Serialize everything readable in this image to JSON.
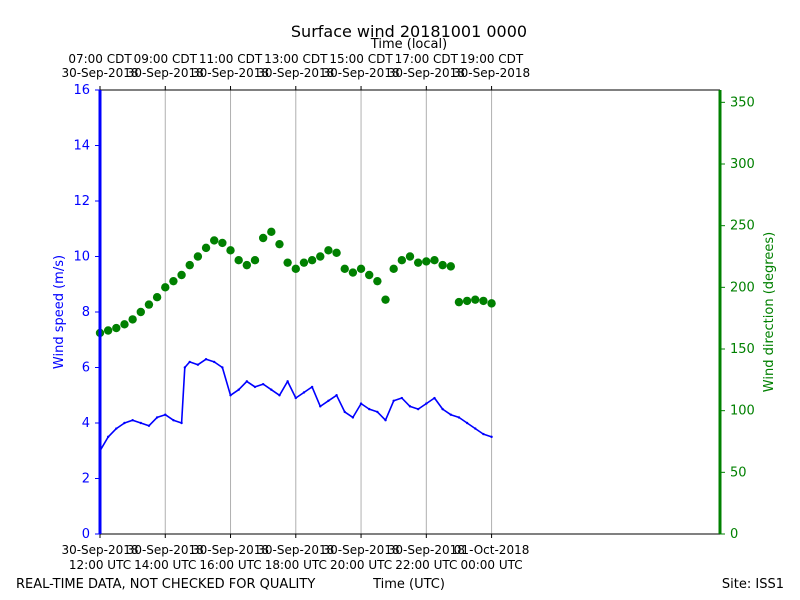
{
  "chart_data": {
    "type": "line",
    "title": "Surface wind 20181001 0000",
    "top_axis_label": "Time (local)",
    "bottom_axis_label": "Time (UTC)",
    "left_axis_label": "Wind speed (m/s)",
    "right_axis_label": "Wind direction (degrees)",
    "footer_left": "REAL-TIME DATA, NOT CHECKED FOR QUALITY",
    "footer_right": "Site: ISS1",
    "x_range_hours": [
      12,
      31
    ],
    "x_ticks": [
      12,
      14,
      16,
      18,
      20,
      22,
      24
    ],
    "bottom_tick_labels": [
      [
        "30-Sep-2018",
        "12:00 UTC"
      ],
      [
        "30-Sep-2018",
        "14:00 UTC"
      ],
      [
        "30-Sep-2018",
        "16:00 UTC"
      ],
      [
        "30-Sep-2018",
        "18:00 UTC"
      ],
      [
        "30-Sep-2018",
        "20:00 UTC"
      ],
      [
        "30-Sep-2018",
        "22:00 UTC"
      ],
      [
        "01-Oct-2018",
        "00:00 UTC"
      ]
    ],
    "top_tick_labels": [
      [
        "07:00 CDT",
        "30-Sep-2018"
      ],
      [
        "09:00 CDT",
        "30-Sep-2018"
      ],
      [
        "11:00 CDT",
        "30-Sep-2018"
      ],
      [
        "13:00 CDT",
        "30-Sep-2018"
      ],
      [
        "15:00 CDT",
        "30-Sep-2018"
      ],
      [
        "17:00 CDT",
        "30-Sep-2018"
      ],
      [
        "19:00 CDT",
        "30-Sep-2018"
      ]
    ],
    "left_ylim": [
      0,
      16
    ],
    "left_yticks": [
      0,
      2,
      4,
      6,
      8,
      10,
      12,
      14,
      16
    ],
    "right_ylim": [
      0,
      360
    ],
    "right_yticks": [
      0,
      50,
      100,
      150,
      200,
      250,
      300,
      350
    ],
    "colors": {
      "speed": "#0000ff",
      "direction": "#008000",
      "grid": "#b0b0b0"
    },
    "series": [
      {
        "name": "Wind speed",
        "axis": "left",
        "style": "line",
        "x": [
          12.0,
          12.25,
          12.5,
          12.75,
          13.0,
          13.25,
          13.5,
          13.75,
          14.0,
          14.25,
          14.5,
          14.6,
          14.75,
          15.0,
          15.25,
          15.5,
          15.75,
          16.0,
          16.25,
          16.5,
          16.75,
          17.0,
          17.25,
          17.5,
          17.75,
          18.0,
          18.25,
          18.5,
          18.75,
          19.0,
          19.25,
          19.5,
          19.75,
          20.0,
          20.25,
          20.5,
          20.75,
          21.0,
          21.25,
          21.5,
          21.75,
          22.0,
          22.25,
          22.5,
          22.75,
          23.0,
          23.25,
          23.5,
          23.75,
          24.0
        ],
        "y": [
          3.0,
          3.5,
          3.8,
          4.0,
          4.1,
          4.0,
          3.9,
          4.2,
          4.3,
          4.1,
          4.0,
          6.0,
          6.2,
          6.1,
          6.3,
          6.2,
          6.0,
          5.0,
          5.2,
          5.5,
          5.3,
          5.4,
          5.2,
          5.0,
          5.5,
          4.9,
          5.1,
          5.3,
          4.6,
          4.8,
          5.0,
          4.4,
          4.2,
          4.7,
          4.5,
          4.4,
          4.1,
          4.8,
          4.9,
          4.6,
          4.5,
          4.7,
          4.9,
          4.5,
          4.3,
          4.2,
          4.0,
          3.8,
          3.6,
          3.5
        ],
        "approximate": true
      },
      {
        "name": "Wind direction",
        "axis": "right",
        "style": "markers",
        "x": [
          12.0,
          12.25,
          12.5,
          12.75,
          13.0,
          13.25,
          13.5,
          13.75,
          14.0,
          14.25,
          14.5,
          14.75,
          15.0,
          15.25,
          15.5,
          15.75,
          16.0,
          16.25,
          16.5,
          16.75,
          17.0,
          17.25,
          17.5,
          17.75,
          18.0,
          18.25,
          18.5,
          18.75,
          19.0,
          19.25,
          19.5,
          19.75,
          20.0,
          20.25,
          20.5,
          20.75,
          21.0,
          21.25,
          21.5,
          21.75,
          22.0,
          22.25,
          22.5,
          22.75,
          23.0,
          23.25,
          23.5,
          23.75,
          24.0
        ],
        "y": [
          163,
          165,
          167,
          170,
          174,
          180,
          186,
          192,
          200,
          205,
          210,
          218,
          225,
          232,
          238,
          236,
          230,
          222,
          218,
          222,
          240,
          245,
          235,
          220,
          215,
          220,
          222,
          225,
          230,
          228,
          215,
          212,
          215,
          210,
          205,
          190,
          215,
          222,
          225,
          220,
          221,
          222,
          218,
          217,
          188,
          189,
          190,
          189,
          187
        ],
        "approximate": true
      }
    ]
  }
}
